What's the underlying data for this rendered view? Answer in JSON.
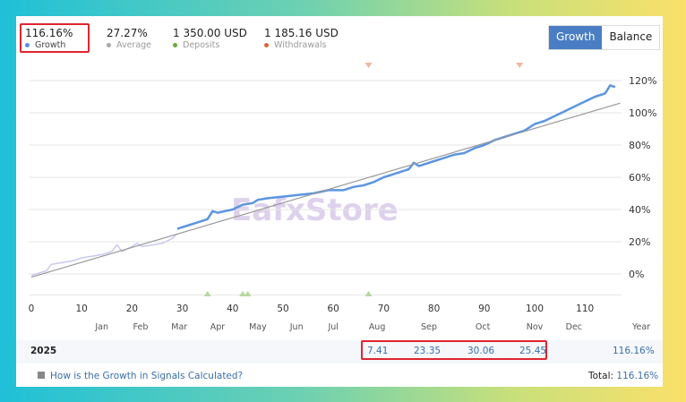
{
  "stats": [
    {
      "value": "116.16%",
      "label": "Growth",
      "color": "#5b8ee6"
    },
    {
      "value": "27.27%",
      "label": "Average",
      "color": "#aaaaaa"
    },
    {
      "value": "1 350.00 USD",
      "label": "Deposits",
      "color": "#6aaa3a"
    },
    {
      "value": "1 185.16 USD",
      "label": "Withdrawals",
      "color": "#e0603a"
    }
  ],
  "toggle": {
    "growth": "Growth",
    "balance": "Balance"
  },
  "watermark": "EafxStore",
  "chart_data": {
    "type": "line",
    "xlim": [
      0,
      118
    ],
    "ylim": [
      -10,
      125
    ],
    "x_ticks": [
      0,
      10,
      20,
      30,
      40,
      50,
      60,
      70,
      80,
      90,
      100,
      110
    ],
    "y_ticks": [
      0,
      20,
      40,
      60,
      80,
      100,
      120
    ],
    "y_tick_labels": [
      "0%",
      "20%",
      "40%",
      "60%",
      "80%",
      "100%",
      "120%"
    ],
    "months": [
      {
        "label": "Jan",
        "x": 14
      },
      {
        "label": "Feb",
        "x": 21.7
      },
      {
        "label": "Mar",
        "x": 29.4
      },
      {
        "label": "Apr",
        "x": 37
      },
      {
        "label": "May",
        "x": 45
      },
      {
        "label": "Jun",
        "x": 52.7
      },
      {
        "label": "Jul",
        "x": 60
      },
      {
        "label": "Aug",
        "x": 68.7
      },
      {
        "label": "Sep",
        "x": 79
      },
      {
        "label": "Oct",
        "x": 89.7
      },
      {
        "label": "Nov",
        "x": 100
      },
      {
        "label": "Dec",
        "x": 107.8
      }
    ],
    "year_label": "Year",
    "series": [
      {
        "name": "Growth (early)",
        "color": "#c9c9ef",
        "points": [
          [
            0,
            -1
          ],
          [
            3,
            2
          ],
          [
            4,
            6
          ],
          [
            6,
            7
          ],
          [
            8,
            8
          ],
          [
            10,
            10
          ],
          [
            12,
            11
          ],
          [
            14,
            12
          ],
          [
            16,
            14
          ],
          [
            17,
            18
          ],
          [
            18,
            14
          ],
          [
            20,
            17
          ],
          [
            21,
            19
          ],
          [
            22,
            17
          ],
          [
            24,
            18
          ],
          [
            26,
            19
          ],
          [
            28,
            22
          ],
          [
            29,
            25
          ]
        ]
      },
      {
        "name": "Growth",
        "color": "#5b95e0",
        "points": [
          [
            29,
            28
          ],
          [
            31,
            30
          ],
          [
            33,
            32
          ],
          [
            35,
            34
          ],
          [
            36,
            39
          ],
          [
            37,
            38
          ],
          [
            40,
            40
          ],
          [
            42,
            43
          ],
          [
            44,
            44
          ],
          [
            45,
            46
          ],
          [
            47,
            47
          ],
          [
            50,
            48
          ],
          [
            53,
            49
          ],
          [
            56,
            50
          ],
          [
            59,
            52
          ],
          [
            62,
            52
          ],
          [
            64,
            54
          ],
          [
            66,
            55
          ],
          [
            68,
            57
          ],
          [
            70,
            60
          ],
          [
            72,
            62
          ],
          [
            74,
            64
          ],
          [
            75,
            65
          ],
          [
            76,
            69
          ],
          [
            77,
            67
          ],
          [
            80,
            70
          ],
          [
            82,
            72
          ],
          [
            84,
            74
          ],
          [
            86,
            75
          ],
          [
            88,
            78
          ],
          [
            90,
            80
          ],
          [
            92,
            83
          ],
          [
            94,
            85
          ],
          [
            96,
            87
          ],
          [
            98,
            89
          ],
          [
            100,
            93
          ],
          [
            102,
            95
          ],
          [
            104,
            98
          ],
          [
            106,
            101
          ],
          [
            108,
            104
          ],
          [
            110,
            107
          ],
          [
            112,
            110
          ],
          [
            114,
            112
          ],
          [
            115,
            117
          ],
          [
            116,
            116
          ]
        ]
      },
      {
        "name": "Average trend",
        "color": "#999999",
        "points": [
          [
            0,
            -2
          ],
          [
            117,
            106
          ]
        ]
      }
    ],
    "withdrawal_markers": [
      67,
      97
    ],
    "deposit_markers": [
      35,
      42,
      43,
      67
    ]
  },
  "table": {
    "year": "2025",
    "months": [
      "7.41",
      "23.35",
      "30.06",
      "25.45"
    ],
    "total": "116.16%"
  },
  "footer": {
    "link": "How is the Growth in Signals Calculated?",
    "total_label": "Total:",
    "total_value": "116.16%"
  }
}
